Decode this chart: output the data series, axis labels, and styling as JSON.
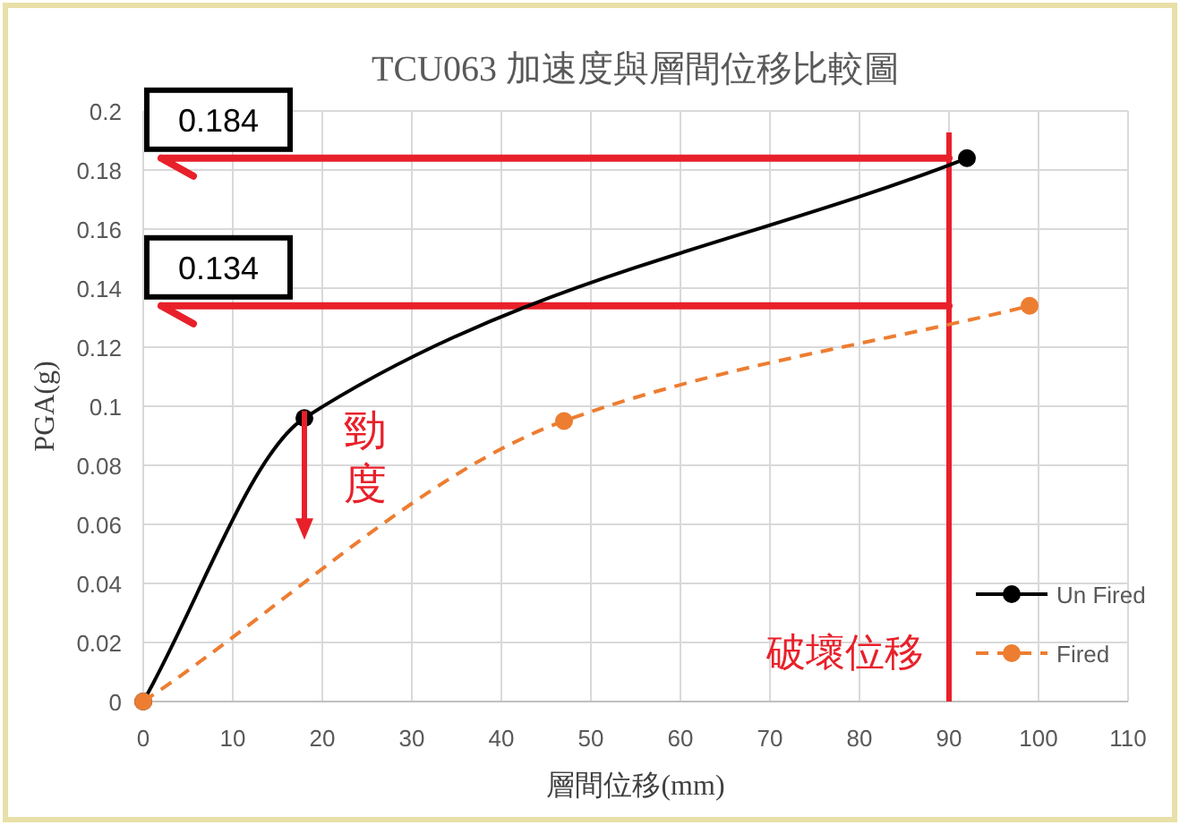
{
  "chart_data": {
    "type": "line",
    "title": "TCU063 加速度與層間位移比較圖",
    "xlabel": "層間位移(mm)",
    "ylabel": "PGA(g)",
    "series": [
      {
        "name": "Un Fired",
        "color": "#000000",
        "line_style": "solid",
        "x": [
          0,
          18,
          92
        ],
        "values": [
          0,
          0.096,
          0.184
        ]
      },
      {
        "name": "Fired",
        "color": "#ed7d31",
        "line_style": "dashed",
        "x": [
          0,
          47,
          99
        ],
        "values": [
          0,
          0.095,
          0.134
        ]
      }
    ],
    "xlim": [
      0,
      110
    ],
    "xticks": [
      0,
      10,
      20,
      30,
      40,
      50,
      60,
      70,
      80,
      90,
      100,
      110
    ],
    "ylim": [
      0,
      0.2
    ],
    "yticks": [
      0,
      0.02,
      0.04,
      0.06,
      0.08,
      0.1,
      0.12,
      0.14,
      0.16,
      0.18,
      0.2
    ],
    "grid": true,
    "legend": "bottom right",
    "marker": "circle",
    "ref_lines": [
      {
        "axis": "x",
        "value": 90,
        "label": "破壞位移",
        "color": "#e8202a"
      },
      {
        "axis": "y",
        "value": 0.184,
        "label": "0.184",
        "color": "#e8202a"
      },
      {
        "axis": "y",
        "value": 0.134,
        "label": "0.134",
        "color": "#e8202a"
      }
    ],
    "annotations": [
      {
        "text": "勁度",
        "x": 18,
        "y": 0.096
      }
    ]
  }
}
